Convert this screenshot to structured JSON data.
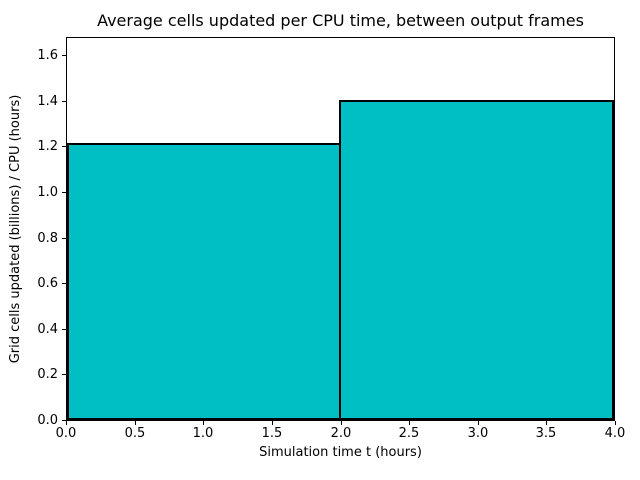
{
  "chart_data": {
    "type": "bar",
    "title": "Average cells updated per CPU time, between output frames",
    "xlabel": "Simulation time t (hours)",
    "ylabel": "Grid cells updated (billions) / CPU (hours)",
    "xlim": [
      0.0,
      4.0
    ],
    "ylim": [
      0.0,
      1.684
    ],
    "xticks": [
      0.0,
      0.5,
      1.0,
      1.5,
      2.0,
      2.5,
      3.0,
      3.5,
      4.0
    ],
    "yticks": [
      0.0,
      0.2,
      0.4,
      0.6,
      0.8,
      1.0,
      1.2,
      1.4,
      1.6
    ],
    "bars": [
      {
        "x_start": 0.0,
        "x_end": 2.0,
        "value": 1.22
      },
      {
        "x_start": 2.0,
        "x_end": 4.0,
        "value": 1.41
      }
    ],
    "bar_fill_color": "#00BFC4",
    "bar_edge_color": "#000000",
    "background_color": "#ffffff",
    "grid": false,
    "legend": null
  }
}
